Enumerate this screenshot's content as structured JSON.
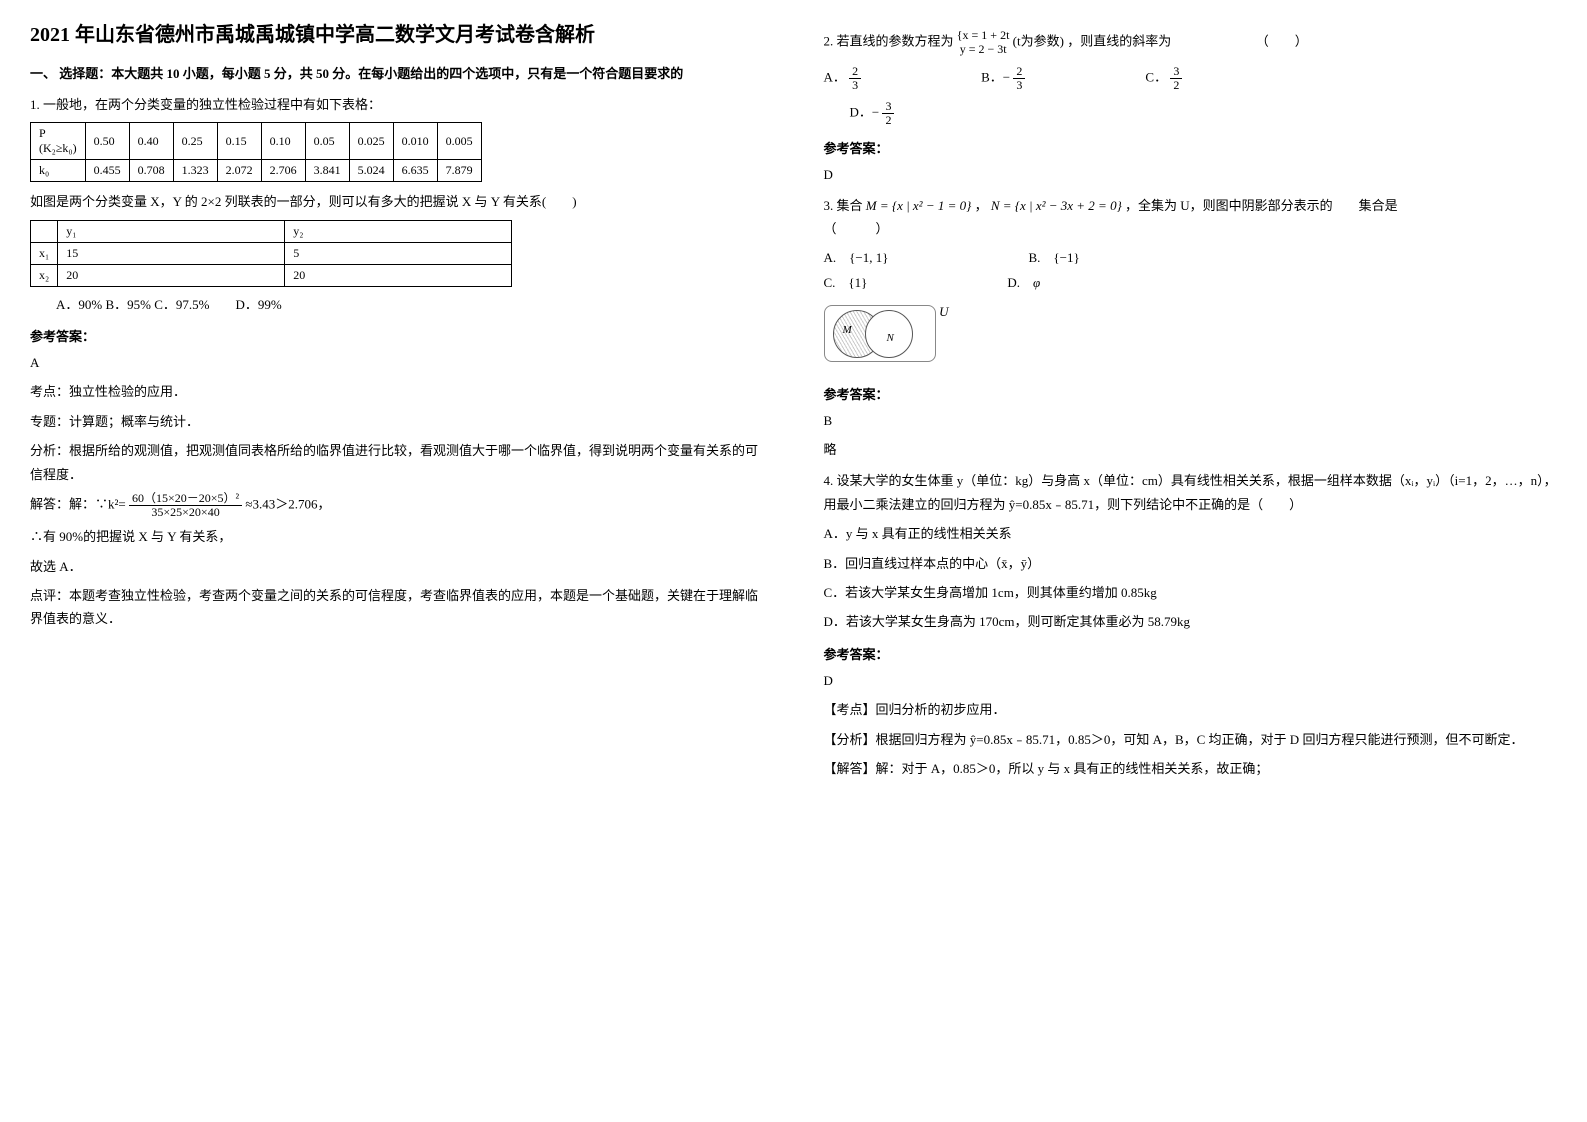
{
  "title": "2021 年山东省德州市禹城禹城镇中学高二数学文月考试卷含解析",
  "section1": "一、 选择题：本大题共 10 小题，每小题 5 分，共 50 分。在每小题给出的四个选项中，只有是一个符合题目要求的",
  "q1": {
    "text": "1. 一般地，在两个分类变量的独立性检验过程中有如下表格：",
    "table1": {
      "r1": [
        "P",
        "0.50",
        "0.40",
        "0.25",
        "0.15",
        "0.10",
        "0.05",
        "0.025",
        "0.010",
        "0.005"
      ],
      "r1b": "(K₂≥k₀)",
      "r2": [
        "k₀",
        "0.455",
        "0.708",
        "1.323",
        "2.072",
        "2.706",
        "3.841",
        "5.024",
        "6.635",
        "7.879"
      ]
    },
    "mid": "如图是两个分类变量 X，Y 的 2×2 列联表的一部分，则可以有多大的把握说 X 与 Y 有关系(　　)",
    "table2": {
      "h": [
        "",
        "y₁",
        "y₂"
      ],
      "r1": [
        "x₁",
        "15",
        "5"
      ],
      "r2": [
        "x₂",
        "20",
        "20"
      ]
    },
    "opts": "　　A．90% B．95% C．97.5%　　D．99%",
    "ansLabel": "参考答案：",
    "ans": "A",
    "kd": "考点：独立性检验的应用．",
    "zt": "专题：计算题；概率与统计．",
    "fx": "分析：根据所给的观测值，把观测值同表格所给的临界值进行比较，看观测值大于哪一个临界值，得到说明两个变量有关系的可信程度．",
    "jdLabel": "解答：解：∵k²=",
    "fracT": "60（15×20－20×5）²",
    "fracB": "35×25×20×40",
    "jdTail": "≈3.43＞2.706，",
    "l2": "∴有 90%的把握说 X 与 Y 有关系，",
    "l3": "故选 A．",
    "dp": "点评：本题考查独立性检验，考查两个变量之间的关系的可信程度，考查临界值表的应用，本题是一个基础题，关键在于理解临界值表的意义．"
  },
  "q2": {
    "lead": "2. 若直线的参数方程为",
    "eq1": "x = 1 + 2t",
    "eq2": "y = 2 − 3t",
    "aside": "(t为参数)",
    "tail": "，则直线的斜率为　　　　　　　（　　）",
    "optA_t": "2",
    "optA_b": "3",
    "optB_t": "2",
    "optB_b": "3",
    "optC_t": "3",
    "optC_b": "2",
    "optD_t": "3",
    "optD_b": "2",
    "ansLabel": "参考答案：",
    "ans": "D"
  },
  "q3": {
    "lead": "3. 集合",
    "M": "M = {x | x² − 1 = 0}",
    "sep": "，",
    "N": "N = {x | x² − 3x + 2 = 0}",
    "tail": "，全集为 U，则图中阴影部分表示的　　集合是　　　　　　　　　　　　　　　　　　　　　　　　　　　（　　　）",
    "A": "{−1, 1}",
    "B": "{−1}",
    "C": "{1}",
    "D": "φ",
    "ansLabel": "参考答案：",
    "ans": "B",
    "brief": "略"
  },
  "q4": {
    "text": "4. 设某大学的女生体重 y（单位：kg）与身高 x（单位：cm）具有线性相关关系，根据一组样本数据（xᵢ，yᵢ）（i=1，2，…，n），用最小二乘法建立的回归方程为 ŷ=0.85x﹣85.71，则下列结论中不正确的是（　　）",
    "A": "A．y 与 x 具有正的线性相关关系",
    "B": "B．回归直线过样本点的中心（x̄，ȳ）",
    "C": "C．若该大学某女生身高增加 1cm，则其体重约增加 0.85kg",
    "D": "D．若该大学某女生身高为 170cm，则可断定其体重必为 58.79kg",
    "ansLabel": "参考答案：",
    "ans": "D",
    "kd": "【考点】回归分析的初步应用．",
    "fx": "【分析】根据回归方程为 ŷ=0.85x﹣85.71，0.85＞0，可知 A，B，C 均正确，对于 D 回归方程只能进行预测，但不可断定．",
    "jd": "【解答】解：对于 A，0.85＞0，所以 y 与 x 具有正的线性相关关系，故正确；"
  }
}
